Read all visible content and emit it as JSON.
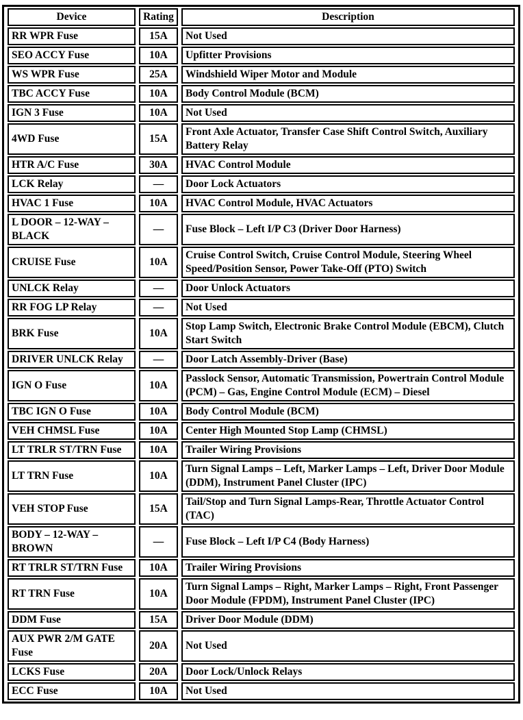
{
  "colors": {
    "background": "#ffffff",
    "border": "#000000",
    "text": "#000000"
  },
  "table": {
    "headers": {
      "device": "Device",
      "rating": "Rating",
      "description": "Description"
    },
    "rows": [
      {
        "device": "RR WPR Fuse",
        "rating": "15A",
        "description": "Not Used"
      },
      {
        "device": "SEO ACCY Fuse",
        "rating": "10A",
        "description": "Upfitter Provisions"
      },
      {
        "device": "WS WPR Fuse",
        "rating": "25A",
        "description": "Windshield Wiper Motor and Module"
      },
      {
        "device": "TBC ACCY Fuse",
        "rating": "10A",
        "description": "Body Control Module (BCM)"
      },
      {
        "device": "IGN 3 Fuse",
        "rating": "10A",
        "description": "Not Used"
      },
      {
        "device": "4WD Fuse",
        "rating": "15A",
        "description": "Front Axle Actuator, Transfer Case Shift Control Switch, Auxiliary Battery Relay"
      },
      {
        "device": "HTR A/C Fuse",
        "rating": "30A",
        "description": "HVAC Control Module"
      },
      {
        "device": "LCK Relay",
        "rating": "—",
        "description": "Door Lock Actuators"
      },
      {
        "device": "HVAC 1 Fuse",
        "rating": "10A",
        "description": "HVAC Control Module, HVAC Actuators"
      },
      {
        "device": "L DOOR – 12-WAY – BLACK",
        "rating": "—",
        "description": "Fuse Block – Left I/P C3 (Driver Door Harness)"
      },
      {
        "device": "CRUISE Fuse",
        "rating": "10A",
        "description": "Cruise Control Switch, Cruise Control Module, Steering Wheel Speed/Position Sensor, Power Take-Off (PTO) Switch"
      },
      {
        "device": "UNLCK Relay",
        "rating": "—",
        "description": "Door Unlock Actuators"
      },
      {
        "device": "RR FOG LP Relay",
        "rating": "—",
        "description": "Not Used"
      },
      {
        "device": "BRK Fuse",
        "rating": "10A",
        "description": "Stop Lamp Switch, Electronic Brake Control Module (EBCM), Clutch Start Switch"
      },
      {
        "device": "DRIVER UNLCK Relay",
        "rating": "—",
        "description": "Door Latch Assembly-Driver (Base)"
      },
      {
        "device": "IGN O Fuse",
        "rating": "10A",
        "description": "Passlock Sensor, Automatic Transmission, Powertrain Control Module (PCM) – Gas, Engine Control Module (ECM) – Diesel"
      },
      {
        "device": "TBC IGN O Fuse",
        "rating": "10A",
        "description": "Body Control Module (BCM)"
      },
      {
        "device": "VEH CHMSL Fuse",
        "rating": "10A",
        "description": "Center High Mounted Stop Lamp (CHMSL)"
      },
      {
        "device": "LT TRLR ST/TRN Fuse",
        "rating": "10A",
        "description": "Trailer Wiring Provisions"
      },
      {
        "device": "LT TRN Fuse",
        "rating": "10A",
        "description": "Turn Signal Lamps – Left, Marker Lamps – Left, Driver Door Module (DDM), Instrument Panel Cluster (IPC)"
      },
      {
        "device": "VEH STOP Fuse",
        "rating": "15A",
        "description": "Tail/Stop and Turn Signal Lamps-Rear, Throttle Actuator Control (TAC)"
      },
      {
        "device": "BODY – 12-WAY – BROWN",
        "rating": "—",
        "description": "Fuse Block – Left I/P C4 (Body Harness)"
      },
      {
        "device": "RT TRLR ST/TRN Fuse",
        "rating": "10A",
        "description": "Trailer Wiring Provisions"
      },
      {
        "device": "RT TRN Fuse",
        "rating": "10A",
        "description": "Turn Signal Lamps – Right, Marker Lamps – Right, Front Passenger Door Module (FPDM), Instrument Panel Cluster (IPC)"
      },
      {
        "device": "DDM Fuse",
        "rating": "15A",
        "description": "Driver Door Module (DDM)"
      },
      {
        "device": "AUX PWR 2/M GATE Fuse",
        "rating": "20A",
        "description": "Not Used"
      },
      {
        "device": "LCKS Fuse",
        "rating": "20A",
        "description": "Door Lock/Unlock Relays"
      },
      {
        "device": "ECC Fuse",
        "rating": "10A",
        "description": "Not Used"
      }
    ]
  }
}
